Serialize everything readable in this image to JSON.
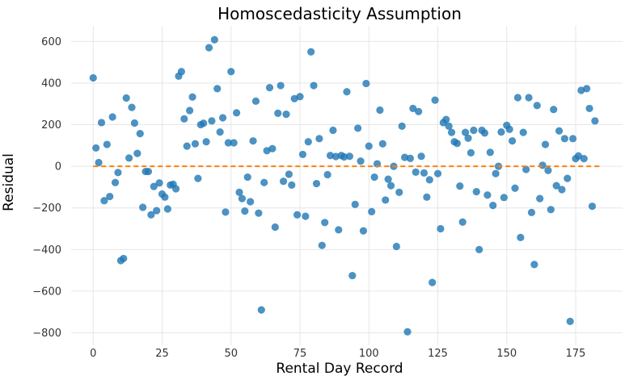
{
  "chart_data": {
    "type": "scatter",
    "title": "Homoscedasticity Assumption",
    "xlabel": "Rental Day Record",
    "ylabel": "Residual",
    "xlim": [
      -8,
      192
    ],
    "ylim": [
      -860,
      675
    ],
    "xticks": [
      0,
      25,
      50,
      75,
      100,
      125,
      150,
      175
    ],
    "yticks": [
      -800,
      -600,
      -400,
      -200,
      0,
      200,
      400,
      600
    ],
    "grid": true,
    "reference_line": {
      "y": 0,
      "x_range": [
        0,
        184
      ],
      "color": "#ff7f0e",
      "style": "dashed"
    },
    "series": [
      {
        "color": "#1f77b4",
        "points": [
          [
            0,
            425
          ],
          [
            1,
            88
          ],
          [
            2,
            18
          ],
          [
            3,
            210
          ],
          [
            4,
            -165
          ],
          [
            5,
            105
          ],
          [
            6,
            -145
          ],
          [
            7,
            237
          ],
          [
            8,
            -78
          ],
          [
            9,
            -30
          ],
          [
            10,
            -453
          ],
          [
            11,
            -443
          ],
          [
            12,
            328
          ],
          [
            13,
            40
          ],
          [
            14,
            283
          ],
          [
            15,
            208
          ],
          [
            16,
            62
          ],
          [
            17,
            157
          ],
          [
            18,
            -197
          ],
          [
            19,
            -25
          ],
          [
            20,
            -25
          ],
          [
            21,
            -233
          ],
          [
            22,
            -97
          ],
          [
            23,
            -213
          ],
          [
            24,
            -80
          ],
          [
            25,
            -133
          ],
          [
            26,
            -148
          ],
          [
            27,
            -205
          ],
          [
            28,
            -90
          ],
          [
            29,
            -86
          ],
          [
            30,
            -108
          ],
          [
            31,
            433
          ],
          [
            32,
            455
          ],
          [
            33,
            228
          ],
          [
            34,
            97
          ],
          [
            35,
            268
          ],
          [
            36,
            333
          ],
          [
            37,
            108
          ],
          [
            38,
            -58
          ],
          [
            39,
            200
          ],
          [
            40,
            207
          ],
          [
            41,
            118
          ],
          [
            42,
            570
          ],
          [
            43,
            218
          ],
          [
            44,
            608
          ],
          [
            45,
            373
          ],
          [
            46,
            165
          ],
          [
            47,
            233
          ],
          [
            48,
            -220
          ],
          [
            49,
            113
          ],
          [
            50,
            455
          ],
          [
            51,
            113
          ],
          [
            52,
            257
          ],
          [
            53,
            -125
          ],
          [
            54,
            -155
          ],
          [
            55,
            -215
          ],
          [
            56,
            -52
          ],
          [
            57,
            -170
          ],
          [
            58,
            122
          ],
          [
            59,
            313
          ],
          [
            60,
            -225
          ],
          [
            61,
            -690
          ],
          [
            62,
            -78
          ],
          [
            63,
            75
          ],
          [
            64,
            378
          ],
          [
            65,
            85
          ],
          [
            66,
            -292
          ],
          [
            67,
            255
          ],
          [
            68,
            388
          ],
          [
            69,
            -72
          ],
          [
            70,
            250
          ],
          [
            71,
            -38
          ],
          [
            72,
            -90
          ],
          [
            73,
            325
          ],
          [
            74,
            -233
          ],
          [
            75,
            335
          ],
          [
            76,
            57
          ],
          [
            77,
            -240
          ],
          [
            78,
            118
          ],
          [
            79,
            550
          ],
          [
            80,
            388
          ],
          [
            81,
            -83
          ],
          [
            82,
            133
          ],
          [
            83,
            -380
          ],
          [
            84,
            -270
          ],
          [
            85,
            -40
          ],
          [
            86,
            52
          ],
          [
            87,
            173
          ],
          [
            88,
            47
          ],
          [
            89,
            -305
          ],
          [
            90,
            52
          ],
          [
            91,
            45
          ],
          [
            92,
            358
          ],
          [
            93,
            48
          ],
          [
            94,
            -525
          ],
          [
            95,
            -183
          ],
          [
            96,
            183
          ],
          [
            97,
            25
          ],
          [
            98,
            -310
          ],
          [
            99,
            398
          ],
          [
            100,
            97
          ],
          [
            101,
            -218
          ],
          [
            102,
            -52
          ],
          [
            103,
            12
          ],
          [
            104,
            270
          ],
          [
            105,
            108
          ],
          [
            106,
            -162
          ],
          [
            107,
            -62
          ],
          [
            108,
            -93
          ],
          [
            109,
            0
          ],
          [
            110,
            -385
          ],
          [
            111,
            -125
          ],
          [
            112,
            193
          ],
          [
            113,
            43
          ],
          [
            114,
            -795
          ],
          [
            115,
            38
          ],
          [
            116,
            278
          ],
          [
            117,
            -28
          ],
          [
            118,
            263
          ],
          [
            119,
            48
          ],
          [
            120,
            -32
          ],
          [
            121,
            -148
          ],
          [
            122,
            -65
          ],
          [
            123,
            -558
          ],
          [
            124,
            318
          ],
          [
            125,
            -35
          ],
          [
            126,
            -300
          ],
          [
            127,
            210
          ],
          [
            128,
            225
          ],
          [
            129,
            193
          ],
          [
            130,
            163
          ],
          [
            131,
            118
          ],
          [
            132,
            110
          ],
          [
            133,
            -95
          ],
          [
            134,
            -268
          ],
          [
            135,
            163
          ],
          [
            136,
            135
          ],
          [
            137,
            65
          ],
          [
            138,
            173
          ],
          [
            139,
            -122
          ],
          [
            140,
            -400
          ],
          [
            141,
            173
          ],
          [
            142,
            160
          ],
          [
            143,
            -138
          ],
          [
            144,
            67
          ],
          [
            145,
            -188
          ],
          [
            146,
            -35
          ],
          [
            147,
            0
          ],
          [
            148,
            165
          ],
          [
            149,
            -150
          ],
          [
            150,
            197
          ],
          [
            151,
            178
          ],
          [
            152,
            122
          ],
          [
            153,
            -105
          ],
          [
            154,
            330
          ],
          [
            155,
            -342
          ],
          [
            156,
            163
          ],
          [
            157,
            -15
          ],
          [
            158,
            330
          ],
          [
            159,
            -222
          ],
          [
            160,
            -472
          ],
          [
            161,
            292
          ],
          [
            162,
            -155
          ],
          [
            163,
            5
          ],
          [
            164,
            105
          ],
          [
            165,
            -20
          ],
          [
            166,
            -208
          ],
          [
            167,
            273
          ],
          [
            168,
            -93
          ],
          [
            169,
            170
          ],
          [
            170,
            -112
          ],
          [
            171,
            133
          ],
          [
            172,
            -58
          ],
          [
            173,
            -745
          ],
          [
            174,
            133
          ],
          [
            175,
            37
          ],
          [
            176,
            50
          ],
          [
            177,
            365
          ],
          [
            178,
            37
          ],
          [
            179,
            373
          ],
          [
            180,
            278
          ],
          [
            181,
            -192
          ],
          [
            182,
            218
          ]
        ]
      }
    ]
  }
}
